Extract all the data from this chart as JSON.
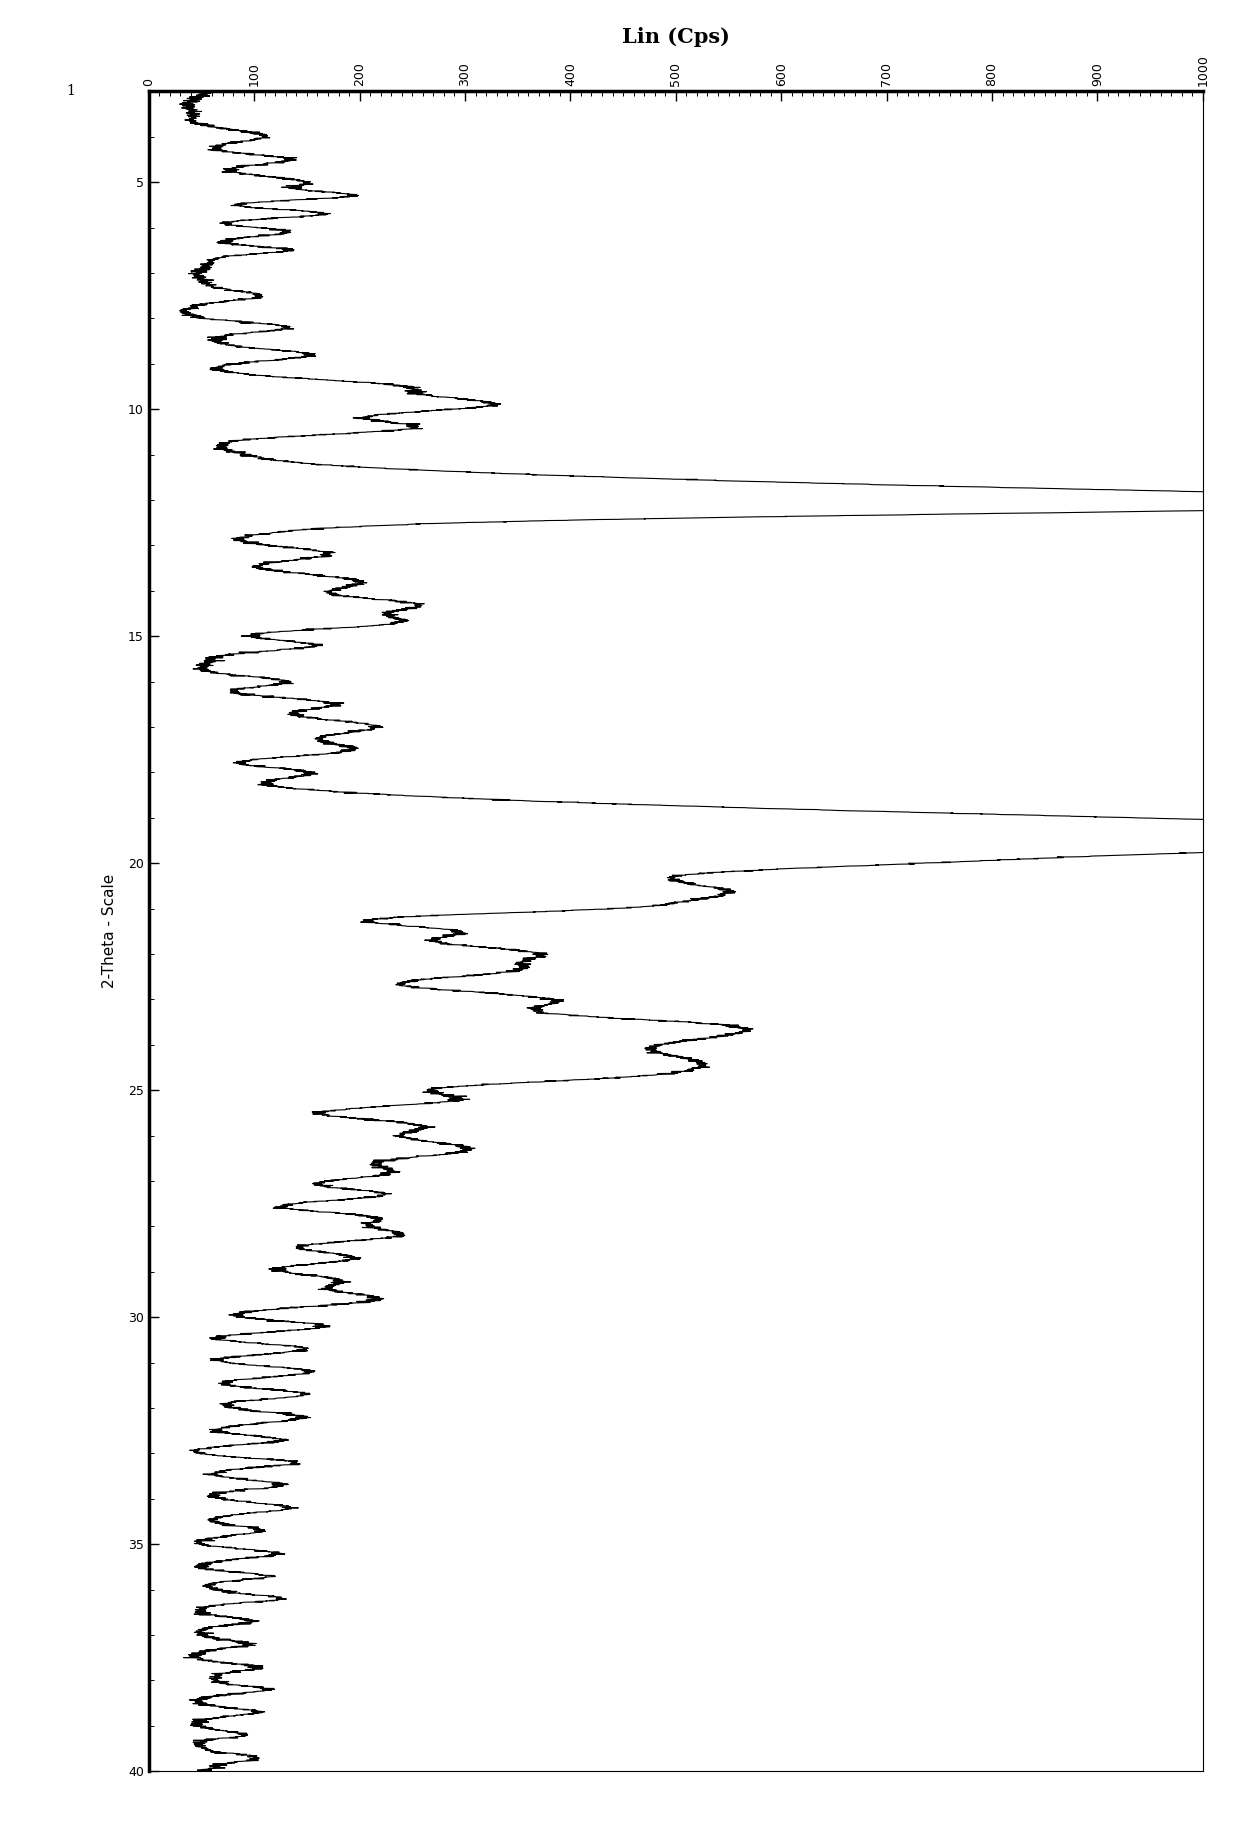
{
  "title": "Lin (Cps)",
  "ylabel": "2-Theta - Scale",
  "xlim": [
    0,
    1000
  ],
  "ylim_min": 3,
  "ylim_max": 40,
  "xlabel_ticks": [
    0,
    100,
    200,
    300,
    400,
    500,
    600,
    700,
    800,
    900,
    1000
  ],
  "ylabel_major_ticks": [
    5,
    10,
    15,
    20,
    25,
    30,
    35,
    40
  ],
  "background_color": "#ffffff",
  "line_color": "#000000",
  "figsize": [
    12.4,
    18.26
  ],
  "dpi": 100
}
